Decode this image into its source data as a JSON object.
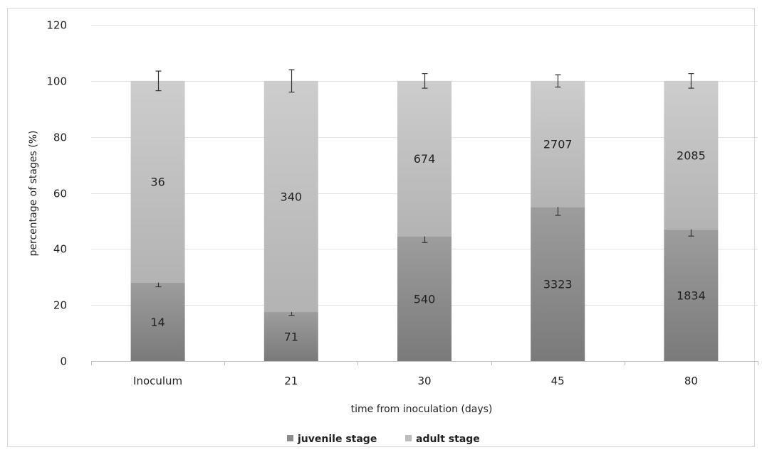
{
  "chart_data": {
    "type": "bar",
    "stacked": true,
    "title": "",
    "xlabel": "time from inoculation (days)",
    "ylabel": "percentage of stages (%)",
    "ylim": [
      0,
      120
    ],
    "yticks": [
      "0",
      "20",
      "40",
      "60",
      "80",
      "100",
      "120"
    ],
    "grid": true,
    "legend_position": "bottom",
    "categories": [
      "Inoculum",
      "21",
      "30",
      "45",
      "80"
    ],
    "series": [
      {
        "name": "juvenile  stage",
        "color": "#8c8c8c",
        "values": [
          28,
          17.5,
          44.5,
          55,
          47
        ],
        "error": [
          1.5,
          1.2,
          2.2,
          3,
          2.4
        ],
        "labels": [
          "14",
          "71",
          "540",
          "3323",
          "1834"
        ]
      },
      {
        "name": "adult stage",
        "color": "#bdbdbd",
        "values": [
          72,
          82.5,
          55.5,
          45,
          53
        ],
        "error": [
          3.5,
          4,
          2.6,
          2.2,
          2.6
        ],
        "labels": [
          "36",
          "340",
          "674",
          "2707",
          "2085"
        ]
      }
    ]
  }
}
